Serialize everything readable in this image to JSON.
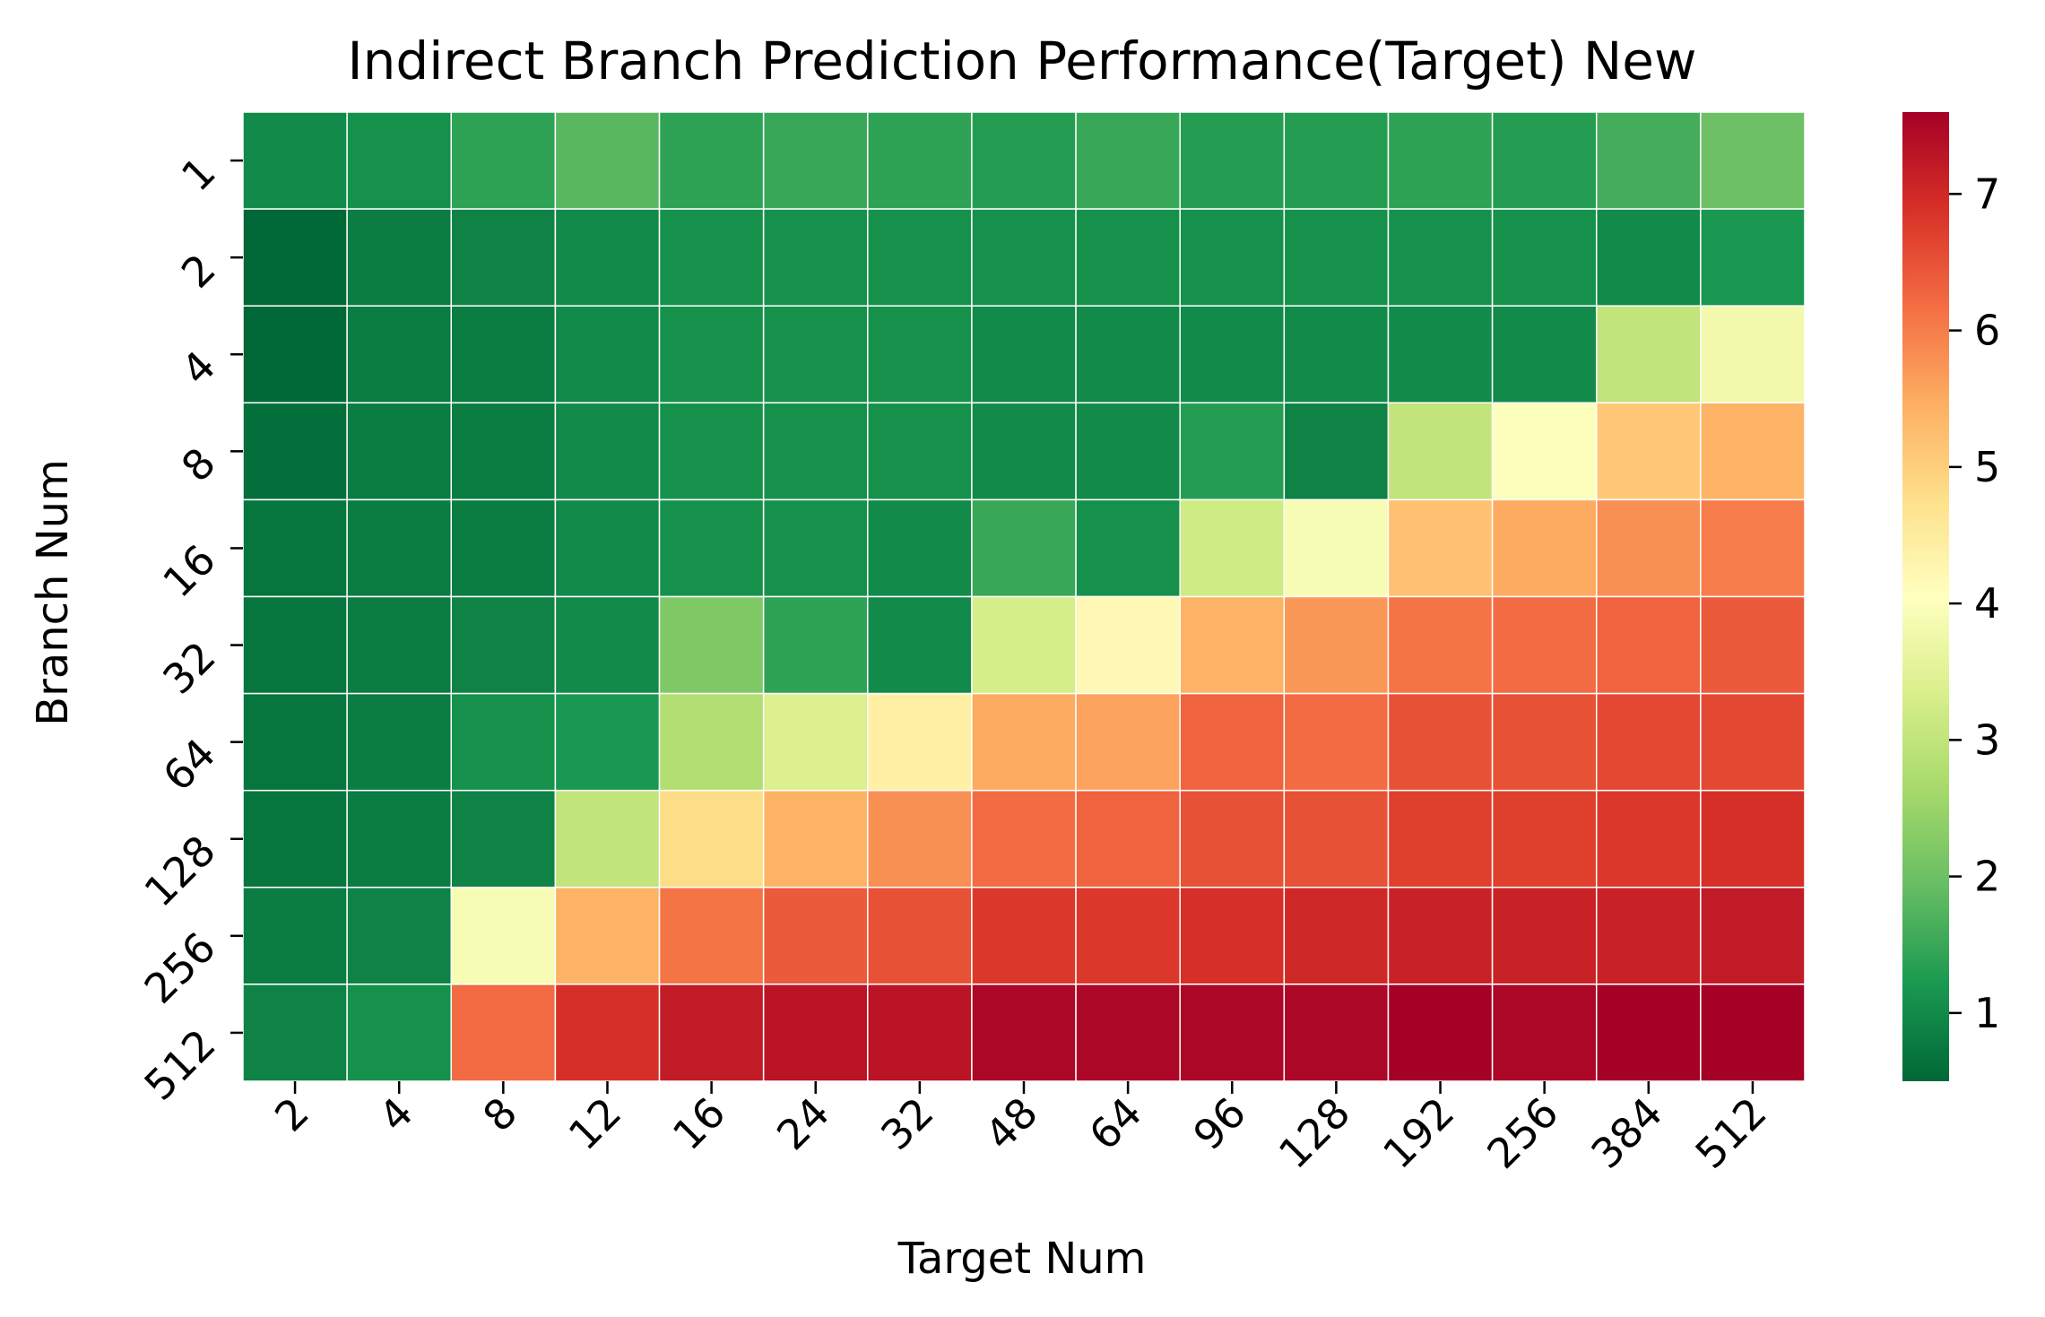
{
  "chart_data": {
    "type": "heatmap",
    "title": "Indirect Branch Prediction Performance(Target) New",
    "xlabel": "Target Num",
    "ylabel": "Branch Num",
    "x": [
      "2",
      "4",
      "8",
      "12",
      "16",
      "24",
      "32",
      "48",
      "64",
      "96",
      "128",
      "192",
      "256",
      "384",
      "512"
    ],
    "y": [
      "1",
      "2",
      "4",
      "8",
      "16",
      "32",
      "64",
      "128",
      "256",
      "512"
    ],
    "values": [
      [
        1.0,
        1.1,
        1.4,
        1.8,
        1.4,
        1.5,
        1.4,
        1.3,
        1.5,
        1.3,
        1.3,
        1.4,
        1.3,
        1.6,
        2.0
      ],
      [
        0.5,
        0.8,
        0.9,
        1.0,
        1.1,
        1.1,
        1.1,
        1.1,
        1.1,
        1.1,
        1.1,
        1.1,
        1.1,
        1.0,
        1.2
      ],
      [
        0.5,
        0.8,
        0.8,
        1.0,
        1.1,
        1.1,
        1.1,
        1.0,
        1.0,
        1.0,
        1.0,
        1.0,
        1.0,
        3.0,
        3.8
      ],
      [
        0.6,
        0.8,
        0.8,
        1.0,
        1.1,
        1.1,
        1.1,
        1.0,
        1.0,
        1.3,
        0.9,
        3.0,
        4.0,
        5.1,
        5.4
      ],
      [
        0.7,
        0.8,
        0.8,
        1.0,
        1.1,
        1.1,
        1.0,
        1.5,
        1.1,
        3.2,
        3.9,
        5.2,
        5.5,
        5.8,
        6.0
      ],
      [
        0.7,
        0.8,
        0.9,
        1.0,
        2.2,
        1.4,
        1.0,
        3.3,
        4.2,
        5.4,
        5.7,
        6.1,
        6.2,
        6.3,
        6.4
      ],
      [
        0.7,
        0.8,
        1.1,
        1.2,
        2.8,
        3.4,
        4.4,
        5.5,
        5.6,
        6.3,
        6.2,
        6.5,
        6.5,
        6.6,
        6.6
      ],
      [
        0.7,
        0.8,
        0.9,
        3.0,
        4.8,
        5.4,
        5.8,
        6.2,
        6.3,
        6.5,
        6.5,
        6.7,
        6.7,
        6.8,
        6.9
      ],
      [
        0.8,
        0.9,
        3.9,
        5.4,
        6.1,
        6.4,
        6.5,
        6.8,
        6.8,
        6.9,
        7.0,
        7.1,
        7.1,
        7.1,
        7.2
      ],
      [
        0.9,
        1.1,
        6.2,
        6.9,
        7.2,
        7.3,
        7.3,
        7.5,
        7.5,
        7.5,
        7.5,
        7.6,
        7.5,
        7.6,
        7.6
      ]
    ],
    "colorbar": {
      "min": 0.5,
      "max": 7.6,
      "ticks": [
        "1",
        "2",
        "3",
        "4",
        "5",
        "6",
        "7"
      ],
      "colormap": "RdYlGn_r"
    }
  }
}
